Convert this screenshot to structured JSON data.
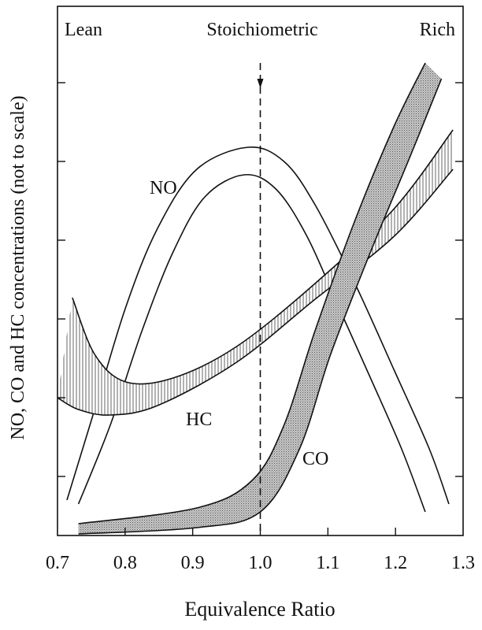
{
  "chart_data": {
    "type": "area",
    "title": "",
    "xlabel": "Equivalence Ratio",
    "ylabel": "NO, CO and HC concentrations (not to scale)",
    "xlim": [
      0.7,
      1.3
    ],
    "ylim": [
      0.25,
      7.0
    ],
    "xticks": [
      "0.7",
      "0.8",
      "0.9",
      "1.0",
      "1.1",
      "1.2",
      "1.3"
    ],
    "xtick_values": [
      0.7,
      0.8,
      0.9,
      1.0,
      1.1,
      1.2,
      1.3
    ],
    "yticks_values": [
      1,
      2,
      3,
      4,
      5,
      6
    ],
    "grid": false,
    "region_labels": {
      "lean": "Lean",
      "stoichiometric": "Stoichiometric",
      "rich": "Rich"
    },
    "stoichiometric_line_x": 1.0,
    "series": [
      {
        "name": "NO",
        "label": "NO",
        "style": "outline",
        "upper": [
          [
            0.714,
            0.7
          ],
          [
            0.755,
            1.85
          ],
          [
            0.801,
            3.15
          ],
          [
            0.848,
            4.15
          ],
          [
            0.906,
            4.9
          ],
          [
            0.982,
            5.18
          ],
          [
            1.035,
            5.0
          ],
          [
            1.081,
            4.45
          ],
          [
            1.14,
            3.45
          ],
          [
            1.198,
            2.35
          ],
          [
            1.25,
            1.35
          ],
          [
            1.279,
            0.65
          ]
        ],
        "lower": [
          [
            0.731,
            0.65
          ],
          [
            0.778,
            1.65
          ],
          [
            0.825,
            2.85
          ],
          [
            0.871,
            3.85
          ],
          [
            0.918,
            4.55
          ],
          [
            0.976,
            4.83
          ],
          [
            1.023,
            4.65
          ],
          [
            1.069,
            4.05
          ],
          [
            1.116,
            3.15
          ],
          [
            1.163,
            2.25
          ],
          [
            1.209,
            1.35
          ],
          [
            1.244,
            0.55
          ]
        ]
      },
      {
        "name": "HC",
        "label": "HC",
        "style": "hatched",
        "upper": [
          [
            0.722,
            3.27
          ],
          [
            0.755,
            2.55
          ],
          [
            0.801,
            2.2
          ],
          [
            0.871,
            2.25
          ],
          [
            0.965,
            2.65
          ],
          [
            1.081,
            3.45
          ],
          [
            1.198,
            4.4
          ],
          [
            1.285,
            5.4
          ]
        ],
        "lower": [
          [
            0.7,
            2.0
          ],
          [
            0.731,
            1.85
          ],
          [
            0.778,
            1.78
          ],
          [
            0.848,
            1.9
          ],
          [
            0.965,
            2.45
          ],
          [
            1.081,
            3.25
          ],
          [
            1.198,
            4.05
          ],
          [
            1.285,
            4.9
          ]
        ]
      },
      {
        "name": "CO",
        "label": "CO",
        "style": "stippled",
        "upper": [
          [
            0.731,
            0.4
          ],
          [
            0.906,
            0.6
          ],
          [
            0.988,
            0.95
          ],
          [
            1.035,
            1.65
          ],
          [
            1.081,
            2.85
          ],
          [
            1.14,
            4.25
          ],
          [
            1.198,
            5.45
          ],
          [
            1.244,
            6.25
          ]
        ],
        "lower": [
          [
            0.731,
            0.27
          ],
          [
            0.906,
            0.35
          ],
          [
            1.0,
            0.55
          ],
          [
            1.058,
            1.35
          ],
          [
            1.104,
            2.55
          ],
          [
            1.163,
            3.85
          ],
          [
            1.221,
            5.05
          ],
          [
            1.268,
            6.05
          ]
        ]
      }
    ],
    "colors": {
      "line": "#111111",
      "co_fill": "#b5b5b5",
      "hc_hatch": "#555555"
    }
  }
}
